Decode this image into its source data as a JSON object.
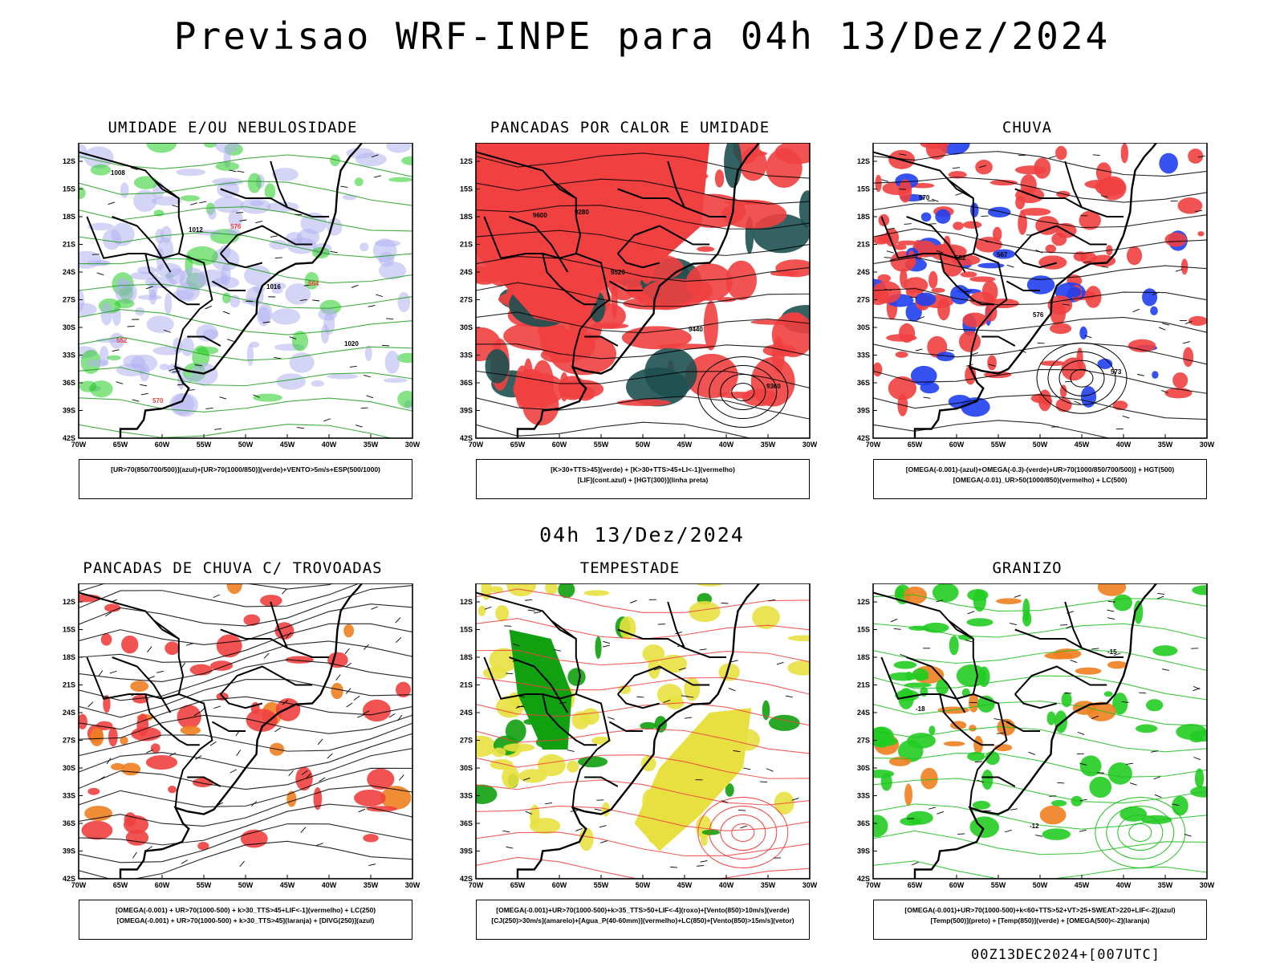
{
  "title": "Previsao WRF-INPE  para 04h 13/Dez/2024",
  "subtitle": "04h 13/Dez/2024",
  "footer": "00Z13DEC2024+[007UTC]",
  "axes": {
    "lat_ticks": [
      "12S",
      "15S",
      "18S",
      "21S",
      "24S",
      "27S",
      "30S",
      "33S",
      "36S",
      "39S",
      "42S"
    ],
    "lon_ticks": [
      "70W",
      "65W",
      "60W",
      "55W",
      "50W",
      "45W",
      "40W",
      "35W",
      "30W"
    ]
  },
  "panels": [
    {
      "title": "UMIDADE E/OU NEBULOSIDADE",
      "legend": [
        "[UR>70(850/700/500)](azul)+[UR>70(1000/850)](verde)+VENTO>5m/s+ESP(500/1000)"
      ],
      "labels": [
        "1008",
        "1012",
        "1016",
        "1020",
        "570",
        "576",
        "564",
        "552"
      ],
      "fills": [
        "#b0b0f0",
        "#22cc22"
      ]
    },
    {
      "title": "PANCADAS POR CALOR E UMIDADE",
      "legend": [
        "[K>30+TTS>45](verde) + [K>30+TTS>45+LI<-1](vermelho)",
        "[LIF](cont.azul) + [HGT(300)](linha preta)"
      ],
      "labels": [
        "9600",
        "9520",
        "9440",
        "9360",
        "9280"
      ],
      "fills": [
        "#f04040",
        "#1e5050"
      ]
    },
    {
      "title": "CHUVA",
      "legend": [
        "[OMEGA(-0.001)-(azul)+OMEGA(-0.3)-(verde)+UR>70(1000/850/700/500)] + HGT(500)",
        "[OMEGA(-0.01)_UR>50(1000/850)(vermelho) + LC(500)"
      ],
      "labels": [
        "582",
        "576",
        "573",
        "570",
        "567"
      ],
      "fills": [
        "#f04040",
        "#2040f0"
      ]
    },
    {
      "title": "PANCADAS DE CHUVA C/ TROVOADAS",
      "legend": [
        "[OMEGA(-0.001) + UR>70(1000-500) + k>30_TTS>45+LIF<-1](vermelho) + LC(250)",
        "[OMEGA(-0.001) + UR>70(1000-500) + k>30_TTS>45](laranja) + [DIVG(250)](azul)"
      ],
      "labels": [],
      "fills": [
        "#f04040",
        "#f08020"
      ]
    },
    {
      "title": "TEMPESTADE",
      "legend": [
        "[OMEGA(-0.001)+UR>70(1000-500)+k>35_TTS>50+LIF<-4](roxo)+[Vento(850)>10m/s](verde)",
        "[CJ(250)>30m/s](amarelo)+[Agua_P(40-60mm)](vermelho)+LC(850)+[Vento(850)>15m/s](vetor)"
      ],
      "labels": [],
      "fills": [
        "#e8e040",
        "#10a010"
      ]
    },
    {
      "title": "GRANIZO",
      "legend": [
        "[OMEGA(-0.001)+UR>70(1000-500)+k<60+TTS>52+VT>25+SWEAT>220+LIF<-2](azul)",
        "[Temp(500)](preto) + [Temp(850)](verde) + [OMEGA(500)<-2](laranja)"
      ],
      "labels": [
        "-12",
        "-15",
        "-18"
      ],
      "fills": [
        "#22cc22",
        "#f08020"
      ]
    }
  ]
}
